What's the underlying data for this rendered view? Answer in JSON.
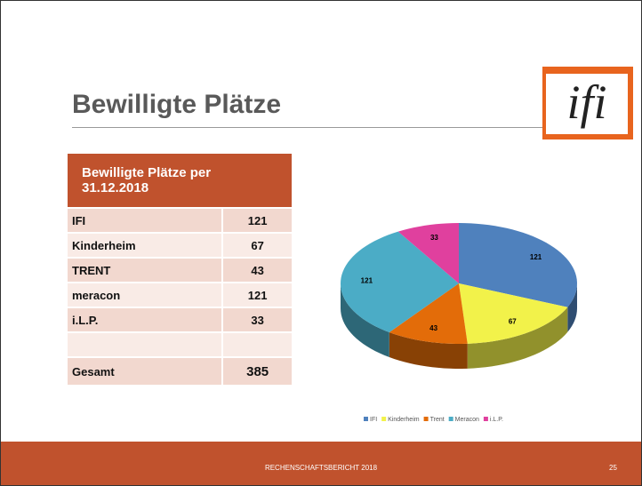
{
  "title": "Bewilligte Plätze",
  "logo": "ifi",
  "table": {
    "header": "Bewilligte Plätze per 31.12.2018",
    "rows": [
      [
        "IFI",
        121
      ],
      [
        "Kinderheim",
        67
      ],
      [
        "TRENT",
        43
      ],
      [
        "meracon",
        121
      ],
      [
        "i.L.P.",
        33
      ]
    ],
    "total": [
      "Gesamt",
      385
    ]
  },
  "chart_data": {
    "type": "pie",
    "categories": [
      "IFI",
      "Kinderheim",
      "Trent",
      "Meracon",
      "i.L.P."
    ],
    "values": [
      121,
      67,
      43,
      121,
      33
    ],
    "colors": [
      "#4f81bd",
      "#f2f24a",
      "#e36c09",
      "#4bacc6",
      "#e0409e"
    ],
    "legend": "bottom"
  },
  "footer": {
    "text": "RECHENSCHAFTSBERICHT 2018",
    "page": "25"
  }
}
